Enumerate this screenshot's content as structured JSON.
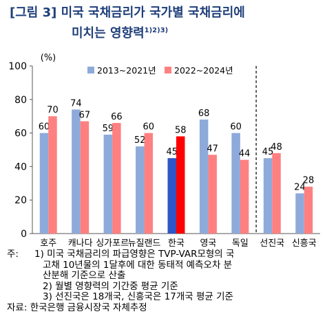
{
  "title": {
    "line1": "[그림 3] 미국 국채금리가 국가별 국채금리에",
    "line2": "미치는 영향력",
    "sup": "1)2)3)"
  },
  "chart_data": {
    "type": "bar",
    "unit_label": "(%)",
    "categories": [
      "호주",
      "캐나다",
      "싱가포르",
      "뉴질랜드",
      "한국",
      "영국",
      "독일",
      "선진국",
      "신흥국"
    ],
    "series": [
      {
        "name": "2013~2021년",
        "values": [
          60,
          74,
          59,
          52,
          45,
          68,
          60,
          45,
          24
        ],
        "color": "#8eaadb",
        "highlight_color": "#2f56c6"
      },
      {
        "name": "2022~2024년",
        "values": [
          70,
          67,
          66,
          60,
          58,
          47,
          44,
          48,
          28
        ],
        "color": "#ff8080",
        "highlight_color": "#ff0000"
      }
    ],
    "highlight_category": "한국",
    "ylim": [
      0,
      100
    ],
    "yticks": [
      0,
      20,
      40,
      60,
      80,
      100
    ],
    "grid": false,
    "legend_position": "top",
    "separator_after": "독일"
  },
  "notes": {
    "prefix": "주:",
    "n1_line1": "1) 미국 국채금리의 파급영향은 TVP-VAR모형의 국",
    "n1_line2": "고채 10년물의 1달후에 대한 동태적 예측오차 분",
    "n1_line3": "산분해 기준으로 산출",
    "n2": "2) 월별 영향력의 기간중 평균 기준",
    "n3": "3) 선진국은 18개국, 신흥국은 17개국 평균 기준",
    "source_label": "자료:",
    "source": "한국은행 금융시장국 자체추정"
  }
}
